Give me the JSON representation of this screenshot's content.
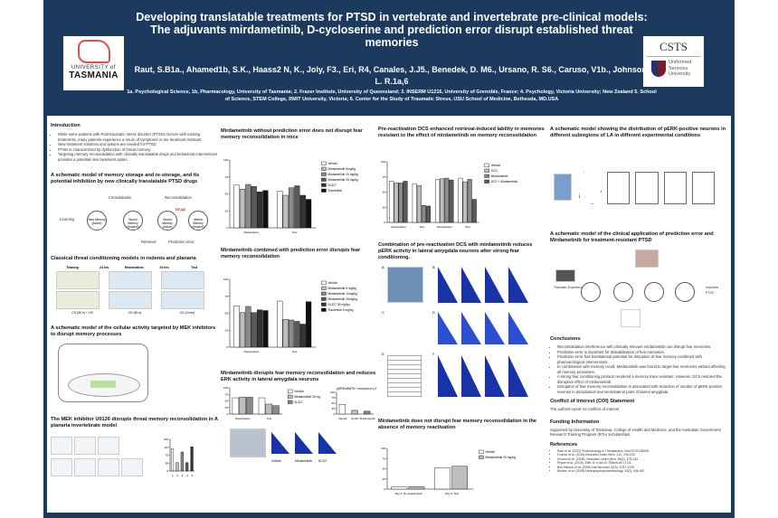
{
  "header": {
    "title": "Developing translatable treatments for PTSD in vertebrate and invertebrate pre-clinical models: The adjuvants mirdametinib, D-cycloserine and prediction error disrupt established threat memories",
    "authors": "Raut, S.B1a., Ahamed1b, S.K., Haass2 N, K., Joly, F3., Eri, R4, Canales, J.J5., Benedek, D. M6., Ursano, R. S6., Caruso, V1b., Johnson, L. R.1a,6",
    "affiliations": "1a. Psychological Science, 1b, Pharmacology, University of Tasmania; 2. Frazer Institute, University of Queensland; 3. INSERM U1216, University of Grenoble, France; 4. Psychology, Victoria University; New Zealand 5. School of Science, STEM College, RMIT University, Victoria; 6. Center for the Study of Traumatic Stress, USU School of Medicine, Bethesda, MD.USA"
  },
  "logos": {
    "left": {
      "line1": "UNIVERSITY of",
      "line2": "TASMANIA"
    },
    "right": {
      "line1": "CSTS",
      "line2": "Uniformed Services University"
    }
  },
  "colors": {
    "navy": "#1c3a5e",
    "panel": "#ffffff"
  },
  "intro": {
    "title": "Introduction",
    "bullets": [
      "While some patients with Post-traumatic stress disorder (PTSD) recover with existing treatments, many patients experience a return of symptoms or are treatment resistant.",
      "New treatment solutions and options are needed for PTSD.",
      "PTSD is characterized by dysfunction of threat memory.",
      "Targeting memory reconsolidation with clinically translatable drugs and behavioral interventions provides a potential new treatment option."
    ]
  },
  "schematic1": {
    "title": "A schematic model of memory storage and re-storage, and its potential inhibition by new clinically translatable PTSD drugs",
    "labels": {
      "learning": "Learning",
      "consolidation": "Consolidation",
      "reconsolidation": "Reconsolidation",
      "drugs": "Drugs",
      "retrieval": "Retrieval",
      "pe": "Prediction error"
    },
    "nodes": [
      "New Memory (Active)",
      "Stored Memory (Inactive)",
      "Stored Memory (Active)",
      "Altered Memory (Inactive)"
    ]
  },
  "classical": {
    "title": "Classical threat conditioning models in rodents and planaria",
    "stages": [
      "Training",
      "Reactivation",
      "Test"
    ],
    "intervals": [
      "24 hrs",
      "24 hrs"
    ],
    "captions": [
      "CS (30 s) + US",
      "CS (60 s)",
      "CS (3 min)"
    ]
  },
  "mek_model": {
    "title": "A schematic model of the cellular activity targeted by MEK inhibitors to disrupt memory processes"
  },
  "planaria": {
    "title": "The MEK inhibitor U0126 disrupts threat memory reconsolidation in A planaria invertebrate model"
  },
  "fig_a": {
    "title": "Mirdametinib without prediction error does not disrupt fear memory reconsolidation in mice"
  },
  "fig_b": {
    "title": "Mirdametinib combined with prediction error disrupts fear memory reconsolidation"
  },
  "fig_c": {
    "title": "Mirdametinib disrupts fear memory reconsolidation and reduces ERK activity in lateral amygdala neurons",
    "heat_labels": [
      "Vehicle",
      "Mirdametinib",
      "SL327"
    ]
  },
  "fig_d": {
    "title": "Pre-reactivation DCS enhanced retrieval-induced lability in memories resistant to the effect of mirdametinib on memory reconsolidation"
  },
  "fig_e": {
    "title": "Combination of pre-reactivation DCS with mirdametinib reduces pERK activity in lateral amygdala neurons after strong fear conditioning.",
    "panels": [
      "A",
      "B",
      "C",
      "D",
      "E",
      "F"
    ]
  },
  "fig_f": {
    "title": "Mirdametinib does not disrupt fear memory reconsolidation in the absence of memory reactivation"
  },
  "schematic2": {
    "title": "A schematic model showing the distribution of pERK-positive neurons in different subregions of LA in different experimental conditions"
  },
  "schematic3": {
    "title": "A schematic model of the clinical application of prediction error and Mirdametinib for treatment-resistant PTSD",
    "labels": [
      "Traumatic Experience",
      "Improved PTSD"
    ]
  },
  "conclusions": {
    "title": "Conclusions",
    "bullets": [
      "Reconsolidation interference with clinically relevant mirdametinib can disrupt fear memories.",
      "Prediction error is important for destabilisation of fear memories.",
      "Prediction error has translational potential for disruption of fear memory combined with pharmacological interventions.",
      "In combination with memory recall, Mirdametinib was found to target fear memories without affecting all memory processes.",
      "A strong fear conditioning protocol rendered a memory trace resistant. However, DCS restored the disruptive effect of mirdametinib.",
      "Disruption of fear memory reconsolidation is associated with reduction of number of pERK positive neurons in dorsolateral and ventrolateral parts of lateral amygdala."
    ]
  },
  "coi": {
    "title": "Conflict of Interest (COI) Statement",
    "text": "The authors report no conflicts of interest"
  },
  "funding": {
    "title": "Funding Information",
    "text": "Supported by University of Tasmania, College of Health and Medicine, and the Australian Government Research Training Program (RTA) Scholarships."
  },
  "references": {
    "title": "References",
    "items": [
      "Raut et al. (2022) Pharmacology & Therapeutics, Nov;2019:108195",
      "Cramer et al. (2016) Neurobiol Learn Mem, 112, 195-203.",
      "Duvarci et al. (2005). Neurobiol Learn Mem, 80(2), 103-142.",
      "Pepee et al. (2019). Elife, 8, e.doi:10.7554/eLife.17111",
      "Ben Mamou et al. (2006) Nat Neurosci 9(10), 1237-1239.",
      "Bustos, et al. (2009) Neuropsychopharmacology, 34(2), 446-457."
    ]
  },
  "chart_data": [
    {
      "id": "a",
      "type": "bar",
      "categories": [
        "Reactivation",
        "Test"
      ],
      "ylim": [
        0,
        100
      ],
      "series": [
        {
          "name": "Vehicle",
          "values": [
            63,
            54
          ]
        },
        {
          "name": "Mirdametinib 5mg/kg",
          "values": [
            57,
            48
          ]
        },
        {
          "name": "Mirdametinib 10 mg/kg",
          "values": [
            64,
            59
          ]
        },
        {
          "name": "Mirdametinib 25 mg/kg",
          "values": [
            61,
            62
          ]
        },
        {
          "name": "SL327",
          "values": [
            53,
            48
          ]
        },
        {
          "name": "Trametinib",
          "values": [
            55,
            42
          ]
        }
      ]
    },
    {
      "id": "b",
      "type": "bar",
      "categories": [
        "Reactivation",
        "Test"
      ],
      "ylim": [
        0,
        100
      ],
      "series": [
        {
          "name": "Vehicle",
          "values": [
            61,
            68
          ]
        },
        {
          "name": "Mirdametinib 5 mg/kg",
          "values": [
            51,
            41
          ]
        },
        {
          "name": "Mirdametinib 10mg/kg",
          "values": [
            60,
            40
          ]
        },
        {
          "name": "Mirdametinib 25mg/kg",
          "values": [
            51,
            38
          ]
        },
        {
          "name": "SL327 30 mg/kg",
          "values": [
            55,
            34
          ]
        },
        {
          "name": "Trametinib 5 mg/kg",
          "values": [
            54,
            67
          ]
        }
      ]
    },
    {
      "id": "c",
      "type": "bar",
      "categories": [
        "Reactivation",
        "Test"
      ],
      "ylim": [
        0,
        100
      ],
      "series": [
        {
          "name": "Vehicle",
          "values": [
            62,
            62
          ]
        },
        {
          "name": "Mirdametinib 25 mg/kg",
          "values": [
            65,
            38
          ]
        },
        {
          "name": "SL327",
          "values": [
            64,
            32
          ]
        }
      ]
    },
    {
      "id": "c2",
      "type": "bar",
      "title": "pERK/MAPK+ neurons in LA",
      "categories": [
        "Vehicle",
        "SL327",
        "Mirdametinib"
      ],
      "ylim": [
        0,
        100
      ],
      "series": [
        {
          "values": [
            45,
            17,
            13
          ]
        }
      ]
    },
    {
      "id": "d",
      "type": "bar",
      "categories": [
        "Reactivation",
        "Test",
        "Reactivation",
        "Test"
      ],
      "ylim": [
        0,
        100
      ],
      "series": [
        {
          "name": "Vehicle",
          "values": [
            68,
            64,
            71,
            73
          ]
        },
        {
          "name": "DCS",
          "values": [
            65,
            61,
            72,
            67
          ]
        },
        {
          "name": "Mirdametinib",
          "values": [
            65,
            28,
            73,
            71
          ]
        },
        {
          "name": "DCS + Mirdametinib",
          "values": [
            68,
            27,
            70,
            38
          ]
        }
      ]
    },
    {
      "id": "f",
      "type": "bar",
      "categories": [
        "Day 3: No Reactivation",
        "Day 5: Test"
      ],
      "ylim": [
        0,
        100
      ],
      "series": [
        {
          "name": "Vehicle",
          "values": [
            5,
            52
          ]
        },
        {
          "name": "Mirdametinib 25 mg/kg",
          "values": [
            6,
            56
          ]
        }
      ]
    },
    {
      "id": "p",
      "type": "bar",
      "categories": [
        "1",
        "2",
        "3",
        "4",
        "5"
      ],
      "ylim": [
        0,
        150
      ],
      "series": [
        {
          "values": [
            105,
            40,
            90,
            40,
            115
          ]
        }
      ]
    }
  ]
}
